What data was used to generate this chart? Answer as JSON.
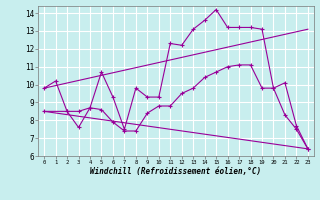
{
  "xlabel": "Windchill (Refroidissement éolien,°C)",
  "bg_color": "#c8eeee",
  "line_color": "#990099",
  "grid_color": "#ffffff",
  "xlim": [
    -0.5,
    23.5
  ],
  "ylim": [
    6,
    14.4
  ],
  "xticks": [
    0,
    1,
    2,
    3,
    4,
    5,
    6,
    7,
    8,
    9,
    10,
    11,
    12,
    13,
    14,
    15,
    16,
    17,
    18,
    19,
    20,
    21,
    22,
    23
  ],
  "yticks": [
    6,
    7,
    8,
    9,
    10,
    11,
    12,
    13,
    14
  ],
  "line1_x": [
    0,
    1,
    2,
    3,
    4,
    5,
    6,
    7,
    8,
    9,
    10,
    11,
    12,
    13,
    14,
    15,
    16,
    17,
    18,
    19,
    20,
    21,
    22,
    23
  ],
  "line1_y": [
    9.8,
    10.2,
    8.5,
    8.5,
    8.7,
    10.7,
    9.3,
    7.5,
    9.8,
    9.3,
    9.3,
    12.3,
    12.2,
    13.1,
    13.6,
    14.2,
    13.2,
    13.2,
    13.2,
    13.1,
    9.8,
    10.1,
    7.7,
    6.4
  ],
  "line2_x": [
    0,
    2,
    3,
    4,
    5,
    6,
    7,
    8,
    9,
    10,
    11,
    12,
    13,
    14,
    15,
    16,
    17,
    18,
    19,
    20,
    21,
    22,
    23
  ],
  "line2_y": [
    8.5,
    8.5,
    7.6,
    8.7,
    8.6,
    7.9,
    7.4,
    7.4,
    8.4,
    8.8,
    8.8,
    9.5,
    9.8,
    10.4,
    10.7,
    11.0,
    11.1,
    11.1,
    9.8,
    9.8,
    8.3,
    7.5,
    6.4
  ],
  "line3_x": [
    0,
    23
  ],
  "line3_y": [
    9.8,
    13.1
  ],
  "line4_x": [
    0,
    23
  ],
  "line4_y": [
    8.5,
    6.4
  ]
}
